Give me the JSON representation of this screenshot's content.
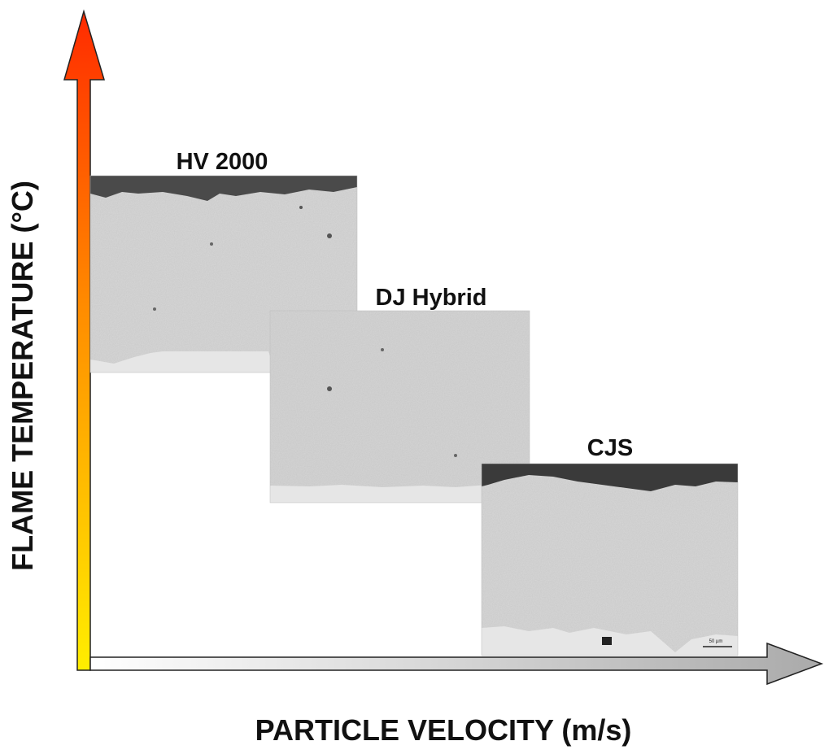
{
  "axes": {
    "y_title": "FLAME TEMPERATURE (°C)",
    "x_title": "PARTICLE VELOCITY (m/s)"
  },
  "panels": [
    {
      "label": "HV 2000"
    },
    {
      "label": "DJ Hybrid"
    },
    {
      "label": "CJS",
      "scale_bar": "50 µm"
    }
  ],
  "colors": {
    "y_arrow_top": "#ff2a00",
    "y_arrow_mid": "#ff8c00",
    "y_arrow_bottom": "#ffee00",
    "x_arrow_start": "#ffffff",
    "x_arrow_end": "#aaaaaa",
    "coating": "#d7d7d7",
    "mounting_resin": "#4a4a4a",
    "substrate": "#e4e4e4"
  }
}
